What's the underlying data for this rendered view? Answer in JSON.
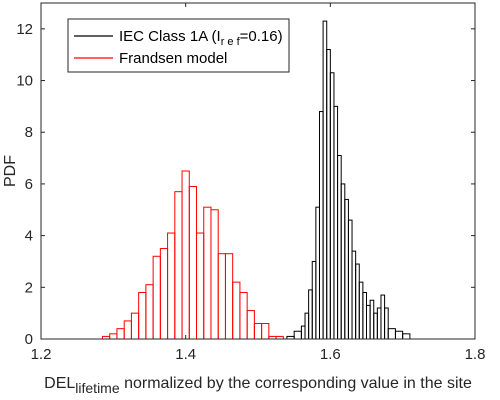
{
  "chart_data": {
    "type": "histogram",
    "xlabel": {
      "main": "DEL",
      "sub": "lifetime",
      "rest": " normalized by the corresponding value in the site"
    },
    "ylabel": "PDF",
    "xlim": [
      1.2,
      1.8
    ],
    "ylim": [
      0,
      13
    ],
    "xticks": [
      1.2,
      1.4,
      1.6,
      1.8
    ],
    "xtick_labels": [
      "1.2",
      "1.4",
      "1.6",
      "1.8"
    ],
    "yticks": [
      0,
      2,
      4,
      6,
      8,
      10,
      12
    ],
    "ytick_labels": [
      "0",
      "2",
      "4",
      "6",
      "8",
      "10",
      "12"
    ],
    "grid": false,
    "legend_position": "top-left",
    "series": [
      {
        "name": "IEC Class 1A (I_ref=0.16)",
        "legend": {
          "pre": "IEC Class 1A (I",
          "sub": "r e f",
          "post": "=0.16)"
        },
        "color": "#000000",
        "bins": [
          [
            1.54,
            1.55,
            0.1
          ],
          [
            1.55,
            1.56,
            0.3
          ],
          [
            1.56,
            1.565,
            0.5
          ],
          [
            1.565,
            1.57,
            1.0
          ],
          [
            1.57,
            1.575,
            1.9
          ],
          [
            1.575,
            1.58,
            3.0
          ],
          [
            1.58,
            1.585,
            5.1
          ],
          [
            1.585,
            1.59,
            8.8
          ],
          [
            1.59,
            1.595,
            12.3
          ],
          [
            1.595,
            1.6,
            11.2
          ],
          [
            1.6,
            1.605,
            10.3
          ],
          [
            1.605,
            1.61,
            9.0
          ],
          [
            1.61,
            1.615,
            7.1
          ],
          [
            1.615,
            1.62,
            6.0
          ],
          [
            1.62,
            1.625,
            5.4
          ],
          [
            1.625,
            1.63,
            4.6
          ],
          [
            1.63,
            1.635,
            3.4
          ],
          [
            1.635,
            1.64,
            2.9
          ],
          [
            1.64,
            1.645,
            2.2
          ],
          [
            1.645,
            1.65,
            1.8
          ],
          [
            1.65,
            1.655,
            1.3
          ],
          [
            1.655,
            1.66,
            1.5
          ],
          [
            1.66,
            1.665,
            1.0
          ],
          [
            1.665,
            1.67,
            1.2
          ],
          [
            1.67,
            1.675,
            1.7
          ],
          [
            1.675,
            1.68,
            1.2
          ],
          [
            1.68,
            1.69,
            0.4
          ],
          [
            1.69,
            1.7,
            0.3
          ],
          [
            1.7,
            1.71,
            0.2
          ]
        ]
      },
      {
        "name": "Frandsen model",
        "legend": {
          "pre": "Frandsen model",
          "sub": "",
          "post": ""
        },
        "color": "#ff0000",
        "bins": [
          [
            1.285,
            1.295,
            0.1
          ],
          [
            1.295,
            1.305,
            0.2
          ],
          [
            1.305,
            1.315,
            0.4
          ],
          [
            1.315,
            1.325,
            0.7
          ],
          [
            1.325,
            1.335,
            1.0
          ],
          [
            1.335,
            1.345,
            1.8
          ],
          [
            1.345,
            1.355,
            2.1
          ],
          [
            1.355,
            1.365,
            3.2
          ],
          [
            1.365,
            1.375,
            3.5
          ],
          [
            1.375,
            1.385,
            4.1
          ],
          [
            1.385,
            1.395,
            5.7
          ],
          [
            1.395,
            1.405,
            6.5
          ],
          [
            1.405,
            1.415,
            5.9
          ],
          [
            1.415,
            1.425,
            4.1
          ],
          [
            1.425,
            1.435,
            5.1
          ],
          [
            1.435,
            1.445,
            5.0
          ],
          [
            1.445,
            1.455,
            3.3
          ],
          [
            1.455,
            1.465,
            3.3
          ],
          [
            1.465,
            1.475,
            2.2
          ],
          [
            1.475,
            1.485,
            1.8
          ],
          [
            1.485,
            1.495,
            1.1
          ],
          [
            1.495,
            1.505,
            0.6
          ],
          [
            1.505,
            1.515,
            0.6
          ],
          [
            1.515,
            1.525,
            0.1
          ],
          [
            1.525,
            1.535,
            0.1
          ]
        ]
      }
    ]
  }
}
